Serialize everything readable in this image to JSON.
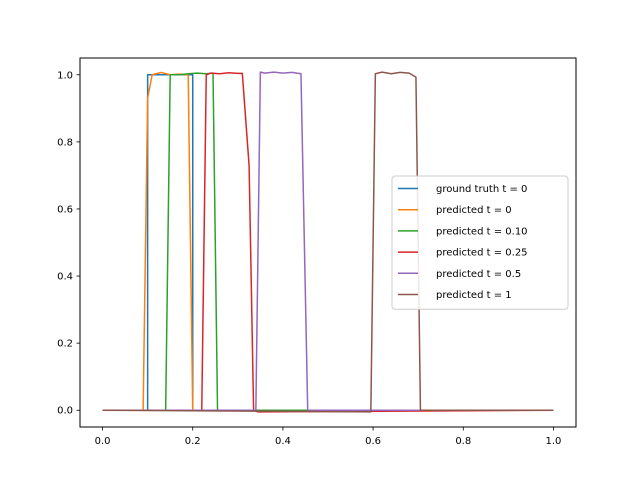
{
  "chart_data": {
    "type": "line",
    "title": "",
    "xlabel": "",
    "ylabel": "",
    "xlim": [
      -0.05,
      1.05
    ],
    "ylim": [
      -0.05,
      1.05
    ],
    "xticks": [
      0.0,
      0.2,
      0.4,
      0.6,
      0.8,
      1.0
    ],
    "xtick_labels": [
      "0.0",
      "0.2",
      "0.4",
      "0.6",
      "0.8",
      "1.0"
    ],
    "yticks": [
      0.0,
      0.2,
      0.4,
      0.6,
      0.8,
      1.0
    ],
    "ytick_labels": [
      "0.0",
      "0.2",
      "0.4",
      "0.6",
      "0.8",
      "1.0"
    ],
    "grid": false,
    "legend_position": "center-right",
    "series": [
      {
        "name": "ground truth t = 0",
        "color": "#1f77b4",
        "x": [
          0.0,
          0.1,
          0.1,
          0.2,
          0.2,
          1.0
        ],
        "y": [
          0.0,
          0.0,
          1.0,
          1.0,
          0.0,
          0.0
        ]
      },
      {
        "name": "predicted t = 0",
        "color": "#ff7f0e",
        "x": [
          0.0,
          0.09,
          0.1,
          0.11,
          0.13,
          0.15,
          0.17,
          0.19,
          0.2,
          0.21,
          1.0
        ],
        "y": [
          0.0,
          0.0,
          0.93,
          1.0,
          1.007,
          1.0,
          1.002,
          1.0,
          0.0,
          0.0,
          0.0
        ]
      },
      {
        "name": "predicted t = 0.10",
        "color": "#2ca02c",
        "x": [
          0.0,
          0.14,
          0.15,
          0.17,
          0.19,
          0.21,
          0.23,
          0.245,
          0.255,
          1.0
        ],
        "y": [
          0.0,
          0.0,
          1.0,
          1.0,
          1.003,
          1.005,
          1.003,
          1.005,
          0.0,
          0.0
        ]
      },
      {
        "name": "predicted t = 0.25",
        "color": "#d62728",
        "x": [
          0.0,
          0.22,
          0.23,
          0.24,
          0.26,
          0.28,
          0.3,
          0.31,
          0.325,
          0.335,
          0.345,
          1.0
        ],
        "y": [
          0.0,
          0.0,
          1.0,
          1.005,
          1.003,
          1.006,
          1.004,
          1.004,
          0.73,
          0.0,
          -0.005,
          0.0
        ]
      },
      {
        "name": "predicted t = 0.5",
        "color": "#9467bd",
        "x": [
          0.0,
          0.34,
          0.35,
          0.36,
          0.38,
          0.4,
          0.42,
          0.44,
          0.455,
          0.46,
          1.0
        ],
        "y": [
          0.0,
          0.0,
          1.008,
          1.005,
          1.008,
          1.005,
          1.007,
          1.003,
          0.0,
          0.0,
          0.0
        ]
      },
      {
        "name": "predicted t = 1",
        "color": "#8c564b",
        "x": [
          0.0,
          0.595,
          0.605,
          0.62,
          0.64,
          0.66,
          0.68,
          0.695,
          0.705,
          1.0
        ],
        "y": [
          0.0,
          -0.005,
          1.003,
          1.008,
          1.003,
          1.007,
          1.005,
          0.993,
          0.0,
          0.0
        ]
      }
    ]
  }
}
